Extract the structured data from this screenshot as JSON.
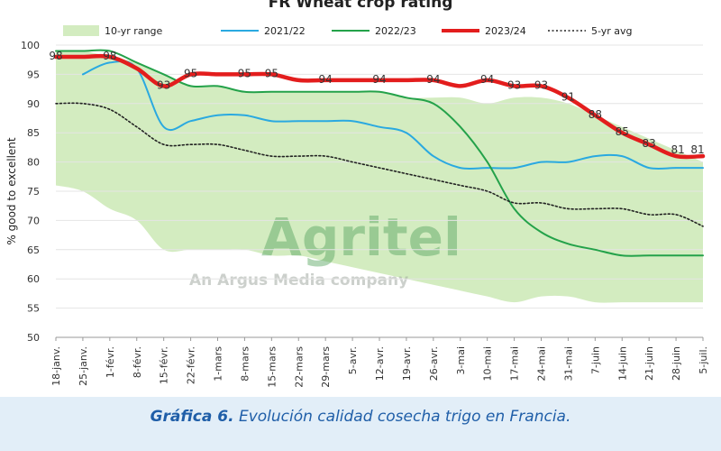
{
  "chart_data": {
    "type": "line",
    "title": "FR Wheat crop rating",
    "ylabel": "% good to excellent",
    "xlabel": "",
    "ylim": [
      50,
      100
    ],
    "yticks": [
      50,
      55,
      60,
      65,
      70,
      75,
      80,
      85,
      90,
      95,
      100
    ],
    "categories": [
      "18-janv.",
      "25-janv.",
      "1-févr.",
      "8-févr.",
      "15-févr.",
      "22-févr.",
      "1-mars",
      "8-mars",
      "15-mars",
      "22-mars",
      "29-mars",
      "5-avr.",
      "12-avr.",
      "19-avr.",
      "26-avr.",
      "3-mai",
      "10-mai",
      "17-mai",
      "24-mai",
      "31-mai",
      "7-juin",
      "14-juin",
      "21-juin",
      "28-juin",
      "5-juil."
    ],
    "legend": {
      "position": "top"
    },
    "range": {
      "name": "10-yr range",
      "color": "#d3ecc0",
      "low": [
        76,
        75,
        72,
        70,
        65,
        65,
        65,
        65,
        64,
        64,
        63,
        62,
        61,
        60,
        59,
        58,
        57,
        56,
        57,
        57,
        56,
        56,
        56,
        56,
        56
      ],
      "high": [
        99,
        99,
        98,
        97,
        95,
        93,
        93,
        92,
        92,
        92,
        92,
        92,
        92,
        91,
        91,
        91,
        90,
        91,
        91,
        90,
        88,
        86,
        84,
        82,
        80
      ]
    },
    "series": [
      {
        "name": "2021/22",
        "color": "#2aa9e0",
        "dash": "",
        "width": 2,
        "start": 1,
        "values": [
          null,
          95,
          97,
          96,
          86,
          87,
          88,
          88,
          87,
          87,
          87,
          87,
          86,
          85,
          81,
          79,
          79,
          79,
          80,
          80,
          81,
          81,
          79,
          79,
          79
        ]
      },
      {
        "name": "2022/23",
        "color": "#24a24a",
        "dash": "",
        "width": 2,
        "start": 0,
        "values": [
          99,
          99,
          99,
          97,
          95,
          93,
          93,
          92,
          92,
          92,
          92,
          92,
          92,
          91,
          90,
          86,
          80,
          72,
          68,
          66,
          65,
          64,
          64,
          64,
          64
        ]
      },
      {
        "name": "2023/24",
        "color": "#e31d1d",
        "dash": "",
        "width": 4.5,
        "start": 0,
        "values": [
          98,
          98,
          98,
          96,
          93,
          95,
          95,
          95,
          95,
          94,
          94,
          94,
          94,
          94,
          94,
          93,
          94,
          93,
          93,
          91,
          88,
          85,
          83,
          81,
          81
        ]
      },
      {
        "name": "5-yr avg",
        "color": "#222222",
        "dash": "2,2.5",
        "width": 1.6,
        "start": 0,
        "values": [
          90,
          90,
          89,
          86,
          83,
          83,
          83,
          82,
          81,
          81,
          81,
          80,
          79,
          78,
          77,
          76,
          75,
          73,
          73,
          72,
          72,
          72,
          71,
          71,
          69
        ]
      }
    ],
    "data_labels": [
      {
        "i": 0,
        "text": "98"
      },
      {
        "i": 2,
        "text": "98"
      },
      {
        "i": 4,
        "text": "93"
      },
      {
        "i": 5,
        "text": "95"
      },
      {
        "i": 7,
        "text": "95"
      },
      {
        "i": 8,
        "text": "95"
      },
      {
        "i": 10,
        "text": "94"
      },
      {
        "i": 12,
        "text": "94"
      },
      {
        "i": 14,
        "text": "94"
      },
      {
        "i": 16,
        "text": "94"
      },
      {
        "i": 17,
        "text": "93"
      },
      {
        "i": 18,
        "text": "93"
      },
      {
        "i": 19,
        "text": "91"
      },
      {
        "i": 20,
        "text": "88"
      },
      {
        "i": 21,
        "text": "85"
      },
      {
        "i": 22,
        "text": "83"
      },
      {
        "i": 23,
        "text": "81"
      },
      {
        "i": 24,
        "text": "81"
      }
    ]
  },
  "watermark": {
    "logo": "Agritel",
    "tagline": "An Argus Media company"
  },
  "caption": {
    "prefix": "Gráfica 6.",
    "text": " Evolución calidad cosecha trigo en Francia."
  }
}
